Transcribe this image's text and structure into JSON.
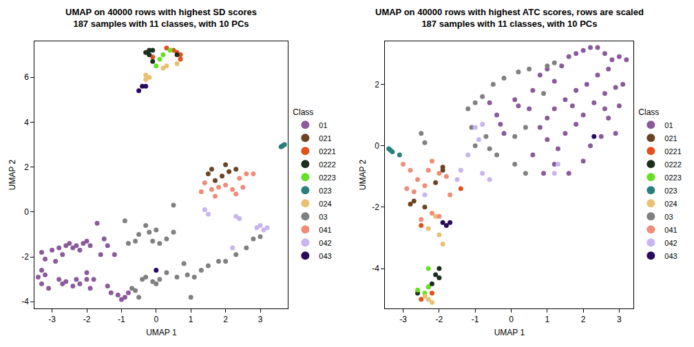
{
  "chart_data": [
    {
      "type": "scatter",
      "title": "UMAP on 40000 rows with highest SD scores\n187 samples with 11 classes, with 10 PCs",
      "x_label": "UMAP 1",
      "y_label": "UMAP 2",
      "legend_title": "Class",
      "xlim": [
        -3.5,
        3.8
      ],
      "xticks": [
        -3,
        -2,
        -1,
        0,
        1,
        2,
        3
      ],
      "ylim": [
        -4.3,
        7.6
      ],
      "yticks": [
        -4,
        -2,
        0,
        2,
        4,
        6
      ],
      "grid": false,
      "legend": "right",
      "marker": "circle",
      "series": [
        {
          "name": "01",
          "color": "#8b5a9b",
          "x": [
            -3.3,
            -3.2,
            -3.3,
            -3.4,
            -3.3,
            -3.2,
            -3.1,
            -3.0,
            -2.9,
            -2.8,
            -2.7,
            -2.6,
            -2.5,
            -2.4,
            -2.3,
            -2.2,
            -2.1,
            -2.0,
            -2.8,
            -2.7,
            -2.6,
            -2.4,
            -2.3,
            -2.2,
            -2.0,
            -1.8,
            -1.9,
            -2.0,
            -1.7,
            -1.5,
            -1.4,
            -1.2,
            -1.4,
            -1.3,
            -1.1,
            -1.0,
            -0.9,
            -0.8,
            -1.6,
            -1.9
          ],
          "y": [
            -1.8,
            -2.1,
            -2.6,
            -2.9,
            -3.2,
            -2.8,
            -3.4,
            -1.7,
            -2.2,
            -1.6,
            -1.9,
            -1.5,
            -1.4,
            -1.6,
            -1.5,
            -1.7,
            -1.4,
            -1.3,
            -3.0,
            -3.2,
            -3.1,
            -3.3,
            -3.0,
            -3.2,
            -3.0,
            -3.0,
            -3.4,
            -2.7,
            -0.5,
            -1.2,
            -1.5,
            -1.9,
            -3.3,
            -3.6,
            -3.7,
            -3.9,
            -3.8,
            -3.6,
            -1.9,
            -1.5
          ]
        },
        {
          "name": "021",
          "color": "#6b4423",
          "x": [
            1.5,
            1.7,
            1.9,
            2.0,
            2.1,
            2.3,
            1.6
          ],
          "y": [
            1.7,
            1.4,
            1.6,
            2.1,
            1.8,
            1.9,
            1.9
          ]
        },
        {
          "name": "0221",
          "color": "#e2501c",
          "x": [
            0.3,
            0.5,
            0.6,
            0.7,
            0.7,
            -0.1
          ],
          "y": [
            7.3,
            7.2,
            7.1,
            7.0,
            6.8,
            6.9
          ]
        },
        {
          "name": "0222",
          "color": "#1c2e1c",
          "x": [
            -0.3,
            -0.2,
            -0.1,
            -0.2,
            -0.1,
            0.6
          ],
          "y": [
            7.1,
            7.2,
            7.2,
            7.0,
            6.7,
            7.0
          ]
        },
        {
          "name": "0223",
          "color": "#66e023",
          "x": [
            0.1,
            0.2,
            0.4,
            0.0
          ],
          "y": [
            6.8,
            7.0,
            7.2,
            6.5
          ]
        },
        {
          "name": "023",
          "color": "#2a7f7a",
          "x": [
            3.6,
            3.65,
            3.7,
            3.62
          ],
          "y": [
            2.9,
            2.95,
            3.0,
            2.92
          ]
        },
        {
          "name": "024",
          "color": "#e8c070",
          "x": [
            -0.3,
            -0.2,
            -0.3,
            0.2,
            0.3,
            0.6
          ],
          "y": [
            6.1,
            6.0,
            5.9,
            6.4,
            6.5,
            6.6
          ]
        },
        {
          "name": "03",
          "color": "#808080",
          "x": [
            -0.9,
            -0.8,
            -0.6,
            -0.5,
            -0.3,
            -0.2,
            -0.1,
            0.0,
            0.1,
            0.3,
            0.5,
            0.5,
            -0.7,
            -0.6,
            -0.4,
            -0.3,
            -0.1,
            0.0,
            0.1,
            0.3,
            0.6,
            0.9,
            1.1,
            1.3,
            1.5,
            1.8,
            2.0,
            2.3,
            2.6,
            2.8,
            3.0,
            0.8,
            1.0,
            -0.5
          ],
          "y": [
            -0.4,
            -1.4,
            -1.3,
            -1.0,
            -0.6,
            -0.9,
            -1.3,
            -0.8,
            -1.4,
            -1.2,
            -0.9,
            0.3,
            -3.4,
            -3.5,
            -3.0,
            -2.9,
            -3.1,
            -3.2,
            -3.0,
            -2.7,
            -2.9,
            -2.8,
            -2.9,
            -2.6,
            -2.4,
            -2.2,
            -2.2,
            -1.9,
            -1.6,
            -1.2,
            -1.1,
            -2.3,
            -3.8,
            -3.8
          ]
        },
        {
          "name": "041",
          "color": "#f08c78",
          "x": [
            1.3,
            1.6,
            1.7,
            1.8,
            2.0,
            2.2,
            2.3,
            2.5,
            2.6,
            2.8,
            2.4,
            1.4
          ],
          "y": [
            0.9,
            1.0,
            0.7,
            1.1,
            1.2,
            1.0,
            0.8,
            1.1,
            1.7,
            1.7,
            1.5,
            1.3
          ]
        },
        {
          "name": "042",
          "color": "#c8b4f0",
          "x": [
            1.4,
            1.5,
            2.3,
            2.4,
            3.0,
            3.1,
            3.2,
            2.9,
            2.2
          ],
          "y": [
            0.1,
            -0.1,
            -0.2,
            -0.3,
            -0.6,
            -0.8,
            -0.7,
            -0.7,
            -1.6
          ]
        },
        {
          "name": "043",
          "color": "#2a0a5e",
          "x": [
            -0.5,
            -0.4,
            -0.3,
            0.0
          ],
          "y": [
            5.4,
            5.6,
            5.6,
            -2.6
          ]
        }
      ]
    },
    {
      "type": "scatter",
      "title": "UMAP on 40000 rows with highest ATC scores, rows are scaled\n187 samples with 11 classes, with 10 PCs",
      "x_label": "UMAP 1",
      "y_label": "UMAP 2",
      "legend_title": "Class",
      "xlim": [
        -3.5,
        3.4
      ],
      "xticks": [
        -3,
        -2,
        -1,
        0,
        1,
        2,
        3
      ],
      "ylim": [
        -5.3,
        3.4
      ],
      "yticks": [
        -4,
        -2,
        0,
        2
      ],
      "grid": false,
      "legend": "right",
      "marker": "circle",
      "series": [
        {
          "name": "01",
          "color": "#8b5a9b",
          "x": [
            -0.6,
            -0.4,
            -0.3,
            0.1,
            0.2,
            0.5,
            0.6,
            0.8,
            1.0,
            1.2,
            1.4,
            1.6,
            1.8,
            2.0,
            2.2,
            2.4,
            2.6,
            2.8,
            3.0,
            3.2,
            2.7,
            2.4,
            2.1,
            1.8,
            1.5,
            1.2,
            1.0,
            0.8,
            1.0,
            1.3,
            1.5,
            1.8,
            2.0,
            2.3,
            2.6,
            2.9,
            3.1,
            2.7,
            2.9,
            2.5,
            2.2,
            2.0,
            1.6,
            1.2,
            0.6,
            -0.2,
            0.9,
            3.0,
            2.6,
            1.7
          ],
          "y": [
            1.4,
            1.0,
            0.7,
            1.5,
            1.3,
            1.2,
            1.8,
            2.3,
            2.5,
            2.1,
            2.6,
            2.9,
            3.0,
            3.1,
            3.2,
            3.2,
            3.0,
            2.8,
            2.9,
            2.8,
            2.5,
            2.3,
            2.0,
            1.8,
            1.5,
            1.2,
            0.9,
            0.6,
            0.2,
            -0.1,
            0.4,
            0.7,
            1.0,
            1.4,
            1.7,
            1.9,
            2.0,
            0.9,
            0.4,
            0.3,
            0.0,
            -0.5,
            -0.9,
            -0.6,
            -0.3,
            0.4,
            -0.9,
            1.3,
            1.2,
            1.3
          ]
        },
        {
          "name": "021",
          "color": "#6b4423",
          "x": [
            -2.8,
            -2.7,
            -2.4,
            -1.9,
            -1.9,
            -2.1
          ],
          "y": [
            -1.9,
            -1.8,
            -2.0,
            -0.7,
            -0.8,
            -1.2
          ]
        },
        {
          "name": "0221",
          "color": "#e2501c",
          "x": [
            -2.5,
            -1.4,
            -2.3,
            -2.2,
            -2.5
          ],
          "y": [
            -2.6,
            -1.4,
            -4.6,
            -4.8,
            -5.0
          ]
        },
        {
          "name": "0222",
          "color": "#1c2e1c",
          "x": [
            -2.0,
            -2.0,
            -2.1,
            -2.2,
            -2.6
          ],
          "y": [
            -4.0,
            -4.3,
            -4.2,
            -4.5,
            -4.8
          ]
        },
        {
          "name": "0223",
          "color": "#66e023",
          "x": [
            -2.3,
            -2.6,
            -2.4,
            -2.3
          ],
          "y": [
            -4.0,
            -4.7,
            -4.8,
            -4.6
          ]
        },
        {
          "name": "023",
          "color": "#2a7f7a",
          "x": [
            -3.4,
            -3.35,
            -3.3,
            -3.1
          ],
          "y": [
            -0.1,
            -0.15,
            -0.2,
            -0.3
          ]
        },
        {
          "name": "024",
          "color": "#e8c070",
          "x": [
            -2.0,
            -1.9,
            -2.1,
            -2.3,
            -2.3,
            -2.4,
            -2.2
          ],
          "y": [
            -2.9,
            -3.2,
            -2.3,
            -2.7,
            -5.0,
            -4.9,
            -5.1
          ]
        },
        {
          "name": "03",
          "color": "#808080",
          "x": [
            -1.2,
            -1.0,
            -0.8,
            -0.5,
            -0.2,
            0.2,
            0.5,
            1.0,
            1.2,
            0.9,
            -0.6,
            -0.4,
            -0.7,
            -1.0,
            0.1,
            0.4,
            -1.1,
            -2.5,
            -2.4,
            0.1,
            0.4
          ],
          "y": [
            1.2,
            1.4,
            1.6,
            2.0,
            2.2,
            2.4,
            2.5,
            2.6,
            2.7,
            1.7,
            -0.1,
            -0.3,
            0.3,
            0.0,
            -0.6,
            -0.9,
            0.6,
            0.4,
            0.1,
            0.3,
            0.6
          ]
        },
        {
          "name": "041",
          "color": "#f08c78",
          "x": [
            -3.0,
            -2.8,
            -2.6,
            -2.9,
            -2.4,
            -2.3,
            -2.0,
            -1.8,
            -2.7,
            -2.5,
            -2.2,
            -2.0,
            -1.7,
            -2.2
          ],
          "y": [
            -0.6,
            -0.8,
            -1.1,
            -1.4,
            -1.3,
            -0.8,
            -0.9,
            -1.0,
            -1.5,
            -2.4,
            -2.2,
            -2.3,
            -1.6,
            -0.5
          ]
        },
        {
          "name": "042",
          "color": "#c8b4f0",
          "x": [
            -1.0,
            -0.8,
            -1.2,
            -0.8,
            -0.6,
            -1.4,
            -1.5,
            -2.4,
            1.2,
            1.3,
            -0.9
          ],
          "y": [
            0.6,
            0.7,
            -0.3,
            -0.9,
            -1.1,
            -0.8,
            -1.1,
            -1.6,
            -0.9,
            -0.6,
            0.2
          ]
        },
        {
          "name": "043",
          "color": "#2a0a5e",
          "x": [
            2.3,
            -1.9,
            -1.8,
            -1.7
          ],
          "y": [
            0.3,
            -2.5,
            -2.6,
            -2.5
          ]
        }
      ]
    }
  ]
}
